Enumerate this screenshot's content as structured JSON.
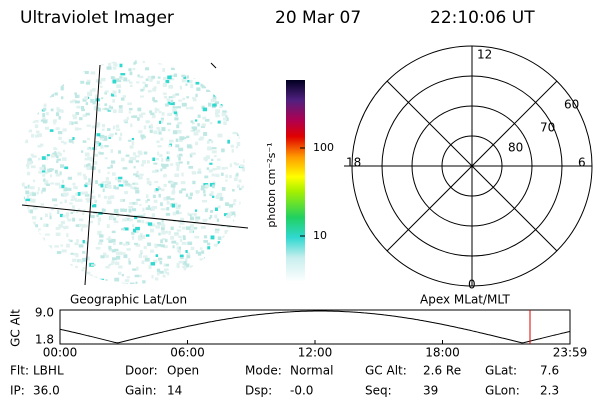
{
  "header": {
    "title": "Ultraviolet Imager",
    "date": "20 Mar 07",
    "time": "22:10:06 UT"
  },
  "colorbar": {
    "label": "photon cm⁻²s⁻¹",
    "ticks": [
      "100",
      "10"
    ]
  },
  "polar": {
    "clock": [
      "12",
      "18",
      "6",
      "0"
    ],
    "rings": [
      "60",
      "70",
      "80"
    ]
  },
  "captions": {
    "left": "Geographic Lat/Lon",
    "right": "Apex MLat/MLT"
  },
  "timeline": {
    "ylabel": "GC Alt",
    "yticks": [
      "9.0",
      "1.8"
    ],
    "xticks": [
      "00:00",
      "06:00",
      "12:00",
      "18:00",
      "23:59"
    ]
  },
  "info": [
    [
      {
        "label": "Flt:",
        "value": "LBHL"
      },
      {
        "label": "Door:",
        "value": "Open"
      },
      {
        "label": "Mode:",
        "value": "Normal"
      },
      {
        "label": "GC Alt:",
        "value": "2.6 Re"
      },
      {
        "label": "GLat:",
        "value": "7.6"
      }
    ],
    [
      {
        "label": "IP:",
        "value": "36.0"
      },
      {
        "label": "Gain:",
        "value": "14"
      },
      {
        "label": "Dsp:",
        "value": "-0.0"
      },
      {
        "label": "Seq:",
        "value": "39"
      },
      {
        "label": "GLon:",
        "value": "2.3"
      }
    ]
  ]
}
